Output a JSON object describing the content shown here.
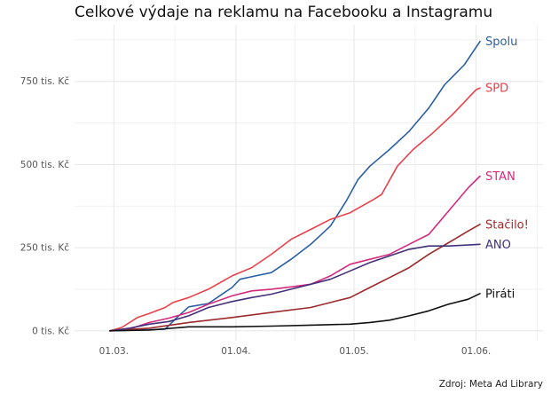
{
  "chart_data": {
    "type": "line",
    "title": "Celkové výdaje na reklamu na Facebooku a Instagramu",
    "caption": "Zdroj: Meta Ad Library",
    "xlabel": "",
    "ylabel": "",
    "x_range": [
      "2025-02-19",
      "2025-06-18"
    ],
    "y_range": [
      -30000,
      920000
    ],
    "x_ticks": [
      {
        "date": "2025-03-01",
        "label": "01.03."
      },
      {
        "date": "2025-04-01",
        "label": "01.04."
      },
      {
        "date": "2025-05-01",
        "label": "01.05."
      },
      {
        "date": "2025-06-01",
        "label": "01.06."
      }
    ],
    "y_ticks": [
      {
        "value": 0,
        "label": "0 tis. Kč"
      },
      {
        "value": 250000,
        "label": "250 tis. Kč"
      },
      {
        "value": 500000,
        "label": "500 tis. Kč"
      },
      {
        "value": 750000,
        "label": "750 tis. Kč"
      }
    ],
    "grid": true,
    "legend": "direct labels at line ends",
    "series": [
      {
        "name": "Spolu",
        "color": "#2b5fa3",
        "points": [
          [
            "2025-02-28",
            0
          ],
          [
            "2025-03-10",
            3000
          ],
          [
            "2025-03-14",
            5000
          ],
          [
            "2025-03-17",
            40000
          ],
          [
            "2025-03-20",
            72000
          ],
          [
            "2025-03-25",
            82000
          ],
          [
            "2025-03-31",
            130000
          ],
          [
            "2025-04-02",
            155000
          ],
          [
            "2025-04-06",
            165000
          ],
          [
            "2025-04-10",
            175000
          ],
          [
            "2025-04-15",
            215000
          ],
          [
            "2025-04-20",
            260000
          ],
          [
            "2025-04-25",
            315000
          ],
          [
            "2025-04-29",
            390000
          ],
          [
            "2025-05-02",
            455000
          ],
          [
            "2025-05-05",
            495000
          ],
          [
            "2025-05-07",
            515000
          ],
          [
            "2025-05-10",
            545000
          ],
          [
            "2025-05-15",
            600000
          ],
          [
            "2025-05-20",
            670000
          ],
          [
            "2025-05-24",
            740000
          ],
          [
            "2025-05-29",
            800000
          ],
          [
            "2025-06-02",
            870000
          ]
        ]
      },
      {
        "name": "SPD",
        "color": "#e8414a",
        "points": [
          [
            "2025-02-28",
            0
          ],
          [
            "2025-03-03",
            10000
          ],
          [
            "2025-03-07",
            40000
          ],
          [
            "2025-03-10",
            52000
          ],
          [
            "2025-03-14",
            70000
          ],
          [
            "2025-03-16",
            85000
          ],
          [
            "2025-03-20",
            100000
          ],
          [
            "2025-03-25",
            125000
          ],
          [
            "2025-03-31",
            165000
          ],
          [
            "2025-04-05",
            190000
          ],
          [
            "2025-04-10",
            230000
          ],
          [
            "2025-04-15",
            275000
          ],
          [
            "2025-04-20",
            305000
          ],
          [
            "2025-04-25",
            335000
          ],
          [
            "2025-04-30",
            355000
          ],
          [
            "2025-05-03",
            375000
          ],
          [
            "2025-05-06",
            395000
          ],
          [
            "2025-05-08",
            410000
          ],
          [
            "2025-05-12",
            495000
          ],
          [
            "2025-05-16",
            545000
          ],
          [
            "2025-05-21",
            595000
          ],
          [
            "2025-05-26",
            650000
          ],
          [
            "2025-05-30",
            700000
          ],
          [
            "2025-06-01",
            725000
          ],
          [
            "2025-06-02",
            730000
          ]
        ]
      },
      {
        "name": "STAN",
        "color": "#d6297d",
        "points": [
          [
            "2025-02-28",
            0
          ],
          [
            "2025-03-05",
            5000
          ],
          [
            "2025-03-10",
            25000
          ],
          [
            "2025-03-15",
            38000
          ],
          [
            "2025-03-20",
            55000
          ],
          [
            "2025-03-25",
            80000
          ],
          [
            "2025-03-31",
            105000
          ],
          [
            "2025-04-05",
            120000
          ],
          [
            "2025-04-10",
            125000
          ],
          [
            "2025-04-15",
            132000
          ],
          [
            "2025-04-20",
            140000
          ],
          [
            "2025-04-25",
            165000
          ],
          [
            "2025-04-30",
            200000
          ],
          [
            "2025-05-05",
            215000
          ],
          [
            "2025-05-10",
            230000
          ],
          [
            "2025-05-15",
            260000
          ],
          [
            "2025-05-20",
            290000
          ],
          [
            "2025-05-25",
            360000
          ],
          [
            "2025-05-30",
            430000
          ],
          [
            "2025-06-02",
            465000
          ]
        ]
      },
      {
        "name": "Stačilo!",
        "color": "#9c2a2a",
        "points": [
          [
            "2025-02-28",
            0
          ],
          [
            "2025-03-10",
            8000
          ],
          [
            "2025-03-20",
            25000
          ],
          [
            "2025-03-31",
            40000
          ],
          [
            "2025-04-10",
            55000
          ],
          [
            "2025-04-20",
            70000
          ],
          [
            "2025-04-25",
            85000
          ],
          [
            "2025-04-30",
            100000
          ],
          [
            "2025-05-05",
            130000
          ],
          [
            "2025-05-10",
            160000
          ],
          [
            "2025-05-15",
            190000
          ],
          [
            "2025-05-20",
            230000
          ],
          [
            "2025-05-25",
            265000
          ],
          [
            "2025-05-30",
            300000
          ],
          [
            "2025-06-02",
            320000
          ]
        ]
      },
      {
        "name": "ANO",
        "color": "#43307a",
        "points": [
          [
            "2025-02-28",
            0
          ],
          [
            "2025-03-05",
            8000
          ],
          [
            "2025-03-10",
            20000
          ],
          [
            "2025-03-15",
            28000
          ],
          [
            "2025-03-20",
            45000
          ],
          [
            "2025-03-25",
            70000
          ],
          [
            "2025-03-31",
            88000
          ],
          [
            "2025-04-05",
            100000
          ],
          [
            "2025-04-10",
            110000
          ],
          [
            "2025-04-15",
            125000
          ],
          [
            "2025-04-20",
            140000
          ],
          [
            "2025-04-25",
            155000
          ],
          [
            "2025-04-30",
            180000
          ],
          [
            "2025-05-05",
            205000
          ],
          [
            "2025-05-10",
            225000
          ],
          [
            "2025-05-15",
            245000
          ],
          [
            "2025-05-20",
            255000
          ],
          [
            "2025-05-25",
            255000
          ],
          [
            "2025-05-30",
            258000
          ],
          [
            "2025-06-02",
            260000
          ]
        ]
      },
      {
        "name": "Piráti",
        "color": "#111111",
        "points": [
          [
            "2025-02-28",
            0
          ],
          [
            "2025-03-10",
            2000
          ],
          [
            "2025-03-20",
            12000
          ],
          [
            "2025-03-31",
            12000
          ],
          [
            "2025-04-10",
            14000
          ],
          [
            "2025-04-20",
            17000
          ],
          [
            "2025-04-30",
            20000
          ],
          [
            "2025-05-05",
            25000
          ],
          [
            "2025-05-10",
            32000
          ],
          [
            "2025-05-15",
            45000
          ],
          [
            "2025-05-20",
            60000
          ],
          [
            "2025-05-25",
            80000
          ],
          [
            "2025-05-30",
            95000
          ],
          [
            "2025-06-02",
            112000
          ]
        ]
      }
    ]
  }
}
